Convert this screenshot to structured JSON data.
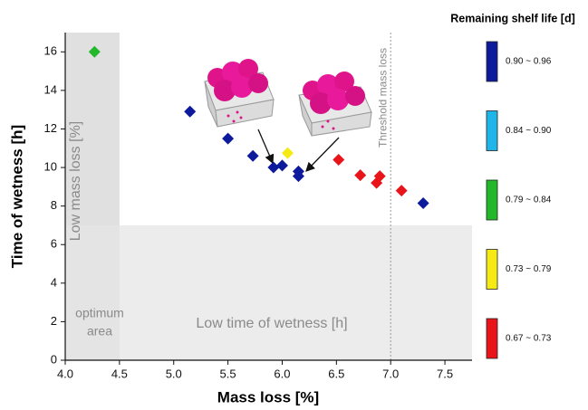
{
  "chart_data": {
    "type": "scatter",
    "x_label": "Mass loss [%]",
    "y_label": "Time of wetness [h]",
    "legend_title": "Remaining shelf life [d]",
    "xlim": [
      4.0,
      7.75
    ],
    "ylim": [
      0,
      17
    ],
    "xticks": [
      {
        "value": 4,
        "label": "4.0"
      },
      4.5,
      {
        "value": 5,
        "label": "5.0"
      },
      5.5,
      {
        "value": 6,
        "label": "6.0"
      },
      6.5,
      {
        "value": 7,
        "label": "7.0"
      },
      7.5
    ],
    "yticks": [
      0,
      2,
      4,
      6,
      8,
      10,
      12,
      14,
      16
    ],
    "regions": [
      {
        "label": "Low mass loss [%]",
        "xlim": [
          4.0,
          4.5
        ],
        "color": "#d6d6d6"
      },
      {
        "label": "Low time of wetness [h]",
        "ylim": [
          0,
          7
        ],
        "color": "#e6e6e6"
      }
    ],
    "optimum_label": [
      "optimum",
      "area"
    ],
    "threshold": {
      "label": "Threshold mass loss",
      "x": 7.0
    },
    "series": [
      {
        "name": "0.90 ~ 0.96",
        "color": "#0d1a9c",
        "x": [
          5.15,
          5.5,
          5.73,
          5.92,
          6.0,
          6.15,
          6.15,
          7.3
        ],
        "values": [
          12.9,
          11.5,
          10.6,
          10.0,
          10.1,
          9.8,
          9.55,
          8.15
        ]
      },
      {
        "name": "0.84 ~ 0.90",
        "color": "#1fb5e8",
        "x": [],
        "values": []
      },
      {
        "name": "0.79 ~ 0.84",
        "color": "#22b82a",
        "x": [
          4.27
        ],
        "values": [
          16.0
        ]
      },
      {
        "name": "0.73 ~ 0.79",
        "color": "#f5ea14",
        "x": [
          6.05
        ],
        "values": [
          10.75
        ]
      },
      {
        "name": "0.67 ~ 0.73",
        "color": "#e8141a",
        "x": [
          6.52,
          6.72,
          6.9,
          6.87,
          7.1
        ],
        "values": [
          10.4,
          9.6,
          9.55,
          9.2,
          8.8
        ]
      }
    ]
  }
}
